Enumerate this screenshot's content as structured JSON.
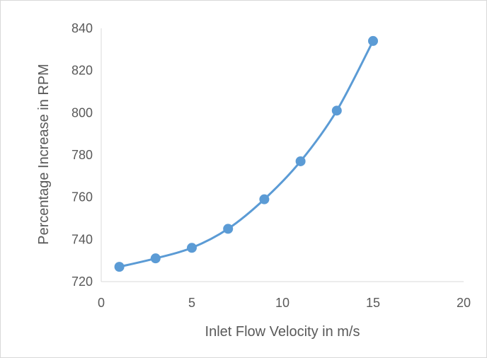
{
  "chart_data": {
    "type": "scatter",
    "smooth_line": true,
    "title": "",
    "xlabel": "Inlet Flow Velocity in m/s",
    "ylabel": "Percentage Increase in RPM",
    "xlim": [
      0,
      20
    ],
    "ylim": [
      720,
      840
    ],
    "x_ticks": [
      "0",
      "5",
      "10",
      "15",
      "20"
    ],
    "y_ticks": [
      "720",
      "740",
      "760",
      "780",
      "800",
      "820",
      "840"
    ],
    "grid": false,
    "legend": "none",
    "series": [
      {
        "x": [
          1,
          3,
          5,
          7,
          9,
          11,
          13,
          15
        ],
        "y": [
          727,
          731,
          736,
          745,
          759,
          777,
          801,
          834
        ]
      }
    ],
    "colors": {
      "series": "#5b9bd5",
      "axis": "#d9d9d9",
      "text": "#595959"
    }
  }
}
